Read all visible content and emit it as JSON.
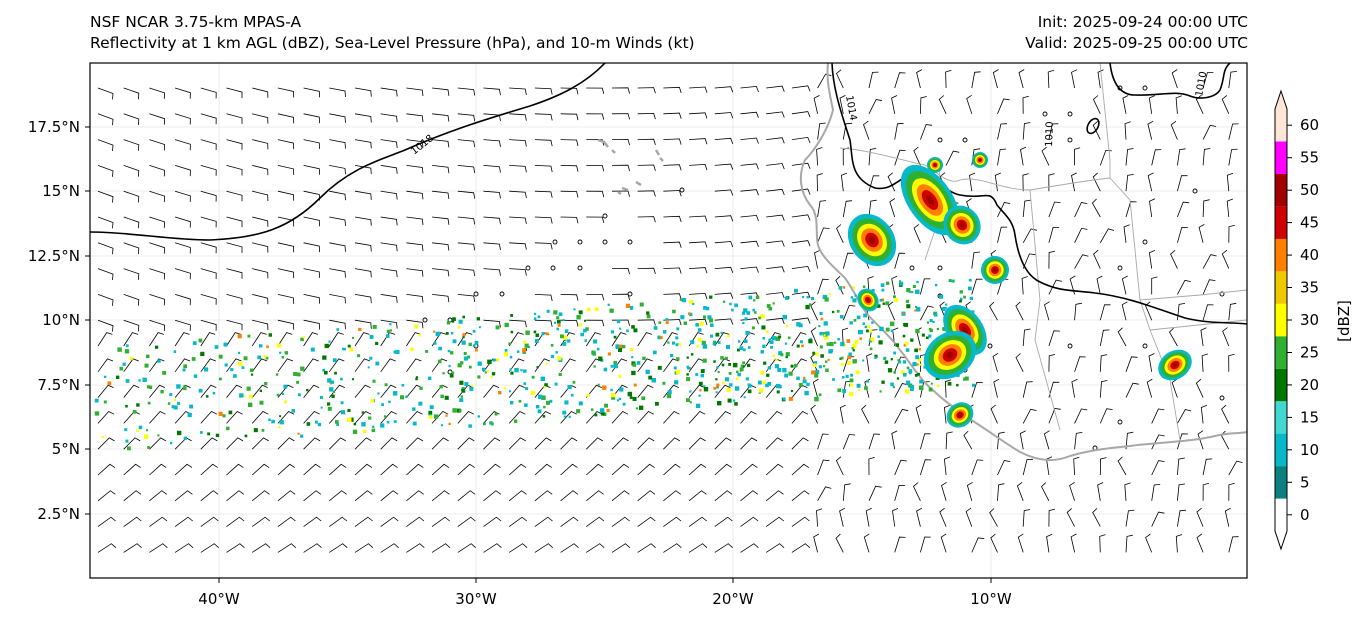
{
  "header": {
    "model": "NSF NCAR 3.75-km MPAS-A",
    "fields": "Reflectivity at 1 km AGL (dBZ), Sea-Level Pressure (hPa), and 10-m Winds (kt)",
    "init": "Init: 2025-09-24 00:00 UTC",
    "valid": "Valid: 2025-09-25 00:00 UTC"
  },
  "map": {
    "lon_range": [
      -45,
      0
    ],
    "lat_range": [
      0,
      20
    ],
    "x_ticks": [
      {
        "lon": -40,
        "label": "40°W"
      },
      {
        "lon": -30,
        "label": "30°W"
      },
      {
        "lon": -20,
        "label": "20°W"
      },
      {
        "lon": -10,
        "label": "10°W"
      }
    ],
    "y_ticks": [
      {
        "lat": 2.5,
        "label": "2.5°N"
      },
      {
        "lat": 5,
        "label": "5°N"
      },
      {
        "lat": 7.5,
        "label": "7.5°N"
      },
      {
        "lat": 10,
        "label": "10°N"
      },
      {
        "lat": 12.5,
        "label": "12.5°N"
      },
      {
        "lat": 15,
        "label": "15°N"
      },
      {
        "lat": 17.5,
        "label": "17.5°N"
      }
    ],
    "isobar_labels": [
      "1018",
      "1014",
      "1010",
      "1010"
    ],
    "land_color": "#a8a8a8",
    "isobar_color": "#000000"
  },
  "colorbar": {
    "label": "[dBZ]",
    "ticks": [
      "0",
      "5",
      "10",
      "15",
      "20",
      "25",
      "30",
      "35",
      "40",
      "45",
      "50",
      "55",
      "60"
    ],
    "colors": [
      "#ffffff",
      "#0a8080",
      "#06b8c8",
      "#40d8d0",
      "#007800",
      "#30b030",
      "#ffff00",
      "#f0c800",
      "#ff8000",
      "#d00000",
      "#a00000",
      "#ff00ff",
      "#ffe6d8"
    ]
  }
}
